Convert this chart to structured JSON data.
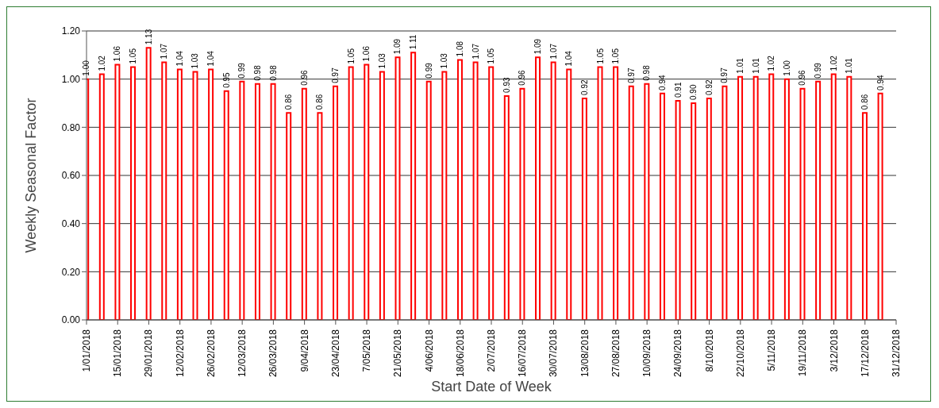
{
  "chart_data": {
    "type": "bar",
    "xlabel": "Start Date of Week",
    "ylabel": "Weekly Seasonal Factor",
    "x": [
      "2018-01-01",
      "2018-01-08",
      "2018-01-15",
      "2018-01-22",
      "2018-01-29",
      "2018-02-05",
      "2018-02-12",
      "2018-02-19",
      "2018-02-26",
      "2018-03-05",
      "2018-03-12",
      "2018-03-19",
      "2018-03-26",
      "2018-04-02",
      "2018-04-09",
      "2018-04-16",
      "2018-04-23",
      "2018-04-30",
      "2018-05-07",
      "2018-05-14",
      "2018-05-21",
      "2018-05-28",
      "2018-06-04",
      "2018-06-11",
      "2018-06-18",
      "2018-06-25",
      "2018-07-02",
      "2018-07-09",
      "2018-07-16",
      "2018-07-23",
      "2018-07-30",
      "2018-08-06",
      "2018-08-13",
      "2018-08-20",
      "2018-08-27",
      "2018-09-03",
      "2018-09-10",
      "2018-09-17",
      "2018-09-24",
      "2018-10-01",
      "2018-10-08",
      "2018-10-15",
      "2018-10-22",
      "2018-10-29",
      "2018-11-05",
      "2018-11-12",
      "2018-11-19",
      "2018-11-26",
      "2018-12-03",
      "2018-12-10",
      "2018-12-17",
      "2018-12-24"
    ],
    "values": [
      1.0,
      1.02,
      1.06,
      1.05,
      1.13,
      1.07,
      1.04,
      1.03,
      1.04,
      0.95,
      0.99,
      0.98,
      0.98,
      0.86,
      0.96,
      0.86,
      0.97,
      1.05,
      1.06,
      1.03,
      1.09,
      1.11,
      0.99,
      1.03,
      1.08,
      1.07,
      1.05,
      0.93,
      0.96,
      1.09,
      1.07,
      1.04,
      0.92,
      1.05,
      1.05,
      0.97,
      0.98,
      0.94,
      0.91,
      0.9,
      0.92,
      0.97,
      1.01,
      1.01,
      1.02,
      1.0,
      0.96,
      0.99,
      1.02,
      1.01,
      0.86,
      0.94
    ],
    "value_labels": [
      "1.00",
      "1.02",
      "1.06",
      "1.05",
      "1.13",
      "1.07",
      "1.04",
      "1.03",
      "1.04",
      "0.95",
      "0.99",
      "0.98",
      "0.98",
      "0.86",
      "0.96",
      "0.86",
      "0.97",
      "1.05",
      "1.06",
      "1.03",
      "1.09",
      "1.11",
      "0.99",
      "1.03",
      "1.08",
      "1.07",
      "1.05",
      "0.93",
      "0.96",
      "1.09",
      "1.07",
      "1.04",
      "0.92",
      "1.05",
      "1.05",
      "0.97",
      "0.98",
      "0.94",
      "0.91",
      "0.90",
      "0.92",
      "0.97",
      "1.01",
      "1.01",
      "1.02",
      "1.00",
      "0.96",
      "0.99",
      "1.02",
      "1.01",
      "0.86",
      "0.94"
    ],
    "color": "#ff0000",
    "xlim": [
      "2018-01-01",
      "2018-12-31"
    ],
    "xticks": [
      {
        "value": "2018-01-01",
        "label": "1/01/2018"
      },
      {
        "value": "2018-01-15",
        "label": "15/01/2018"
      },
      {
        "value": "2018-01-29",
        "label": "29/01/2018"
      },
      {
        "value": "2018-02-12",
        "label": "12/02/2018"
      },
      {
        "value": "2018-02-26",
        "label": "26/02/2018"
      },
      {
        "value": "2018-03-12",
        "label": "12/03/2018"
      },
      {
        "value": "2018-03-26",
        "label": "26/03/2018"
      },
      {
        "value": "2018-04-09",
        "label": "9/04/2018"
      },
      {
        "value": "2018-04-23",
        "label": "23/04/2018"
      },
      {
        "value": "2018-05-07",
        "label": "7/05/2018"
      },
      {
        "value": "2018-05-21",
        "label": "21/05/2018"
      },
      {
        "value": "2018-06-04",
        "label": "4/06/2018"
      },
      {
        "value": "2018-06-18",
        "label": "18/06/2018"
      },
      {
        "value": "2018-07-02",
        "label": "2/07/2018"
      },
      {
        "value": "2018-07-16",
        "label": "16/07/2018"
      },
      {
        "value": "2018-07-30",
        "label": "30/07/2018"
      },
      {
        "value": "2018-08-13",
        "label": "13/08/2018"
      },
      {
        "value": "2018-08-27",
        "label": "27/08/2018"
      },
      {
        "value": "2018-09-10",
        "label": "10/09/2018"
      },
      {
        "value": "2018-09-24",
        "label": "24/09/2018"
      },
      {
        "value": "2018-10-08",
        "label": "8/10/2018"
      },
      {
        "value": "2018-10-22",
        "label": "22/10/2018"
      },
      {
        "value": "2018-11-05",
        "label": "5/11/2018"
      },
      {
        "value": "2018-11-19",
        "label": "19/11/2018"
      },
      {
        "value": "2018-12-03",
        "label": "3/12/2018"
      },
      {
        "value": "2018-12-17",
        "label": "17/12/2018"
      },
      {
        "value": "2018-12-31",
        "label": "31/12/2018"
      }
    ],
    "ylim": [
      0,
      1.2
    ],
    "yticks": [
      {
        "value": 0,
        "label": "0.00"
      },
      {
        "value": 0.2,
        "label": "0.20"
      },
      {
        "value": 0.4,
        "label": "0.40"
      },
      {
        "value": 0.6,
        "label": "0.60"
      },
      {
        "value": 0.8,
        "label": "0.80"
      },
      {
        "value": 1.0,
        "label": "1.00"
      },
      {
        "value": 1.2,
        "label": "1.20"
      }
    ],
    "grid": "y"
  }
}
